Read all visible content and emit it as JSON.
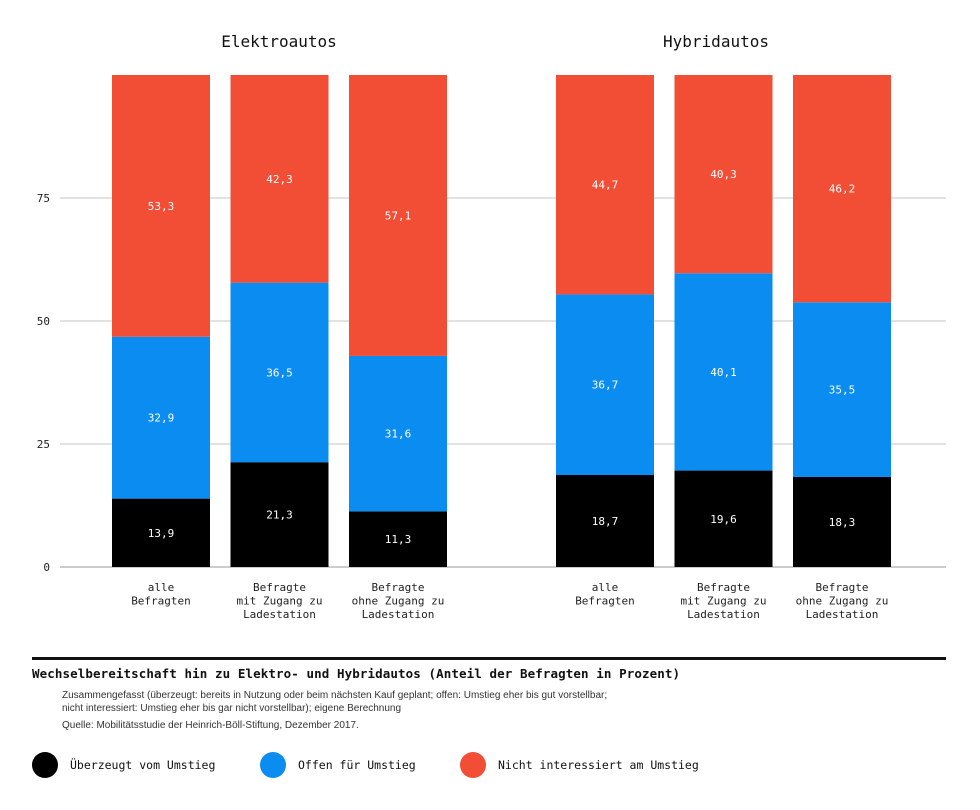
{
  "chart_data": {
    "type": "bar",
    "stacked": true,
    "panels": [
      {
        "title": "Elektroautos",
        "categories": [
          "alle\nBefragten",
          "Befragte\nmit Zugang zu\nLadestation",
          "Befragte\nohne Zugang zu\nLadestation"
        ],
        "series": [
          {
            "name": "Überzeugt vom Umstieg",
            "color": "#000000",
            "values": [
              13.9,
              21.3,
              11.3
            ],
            "labels": [
              "13,9",
              "21,3",
              "11,3"
            ]
          },
          {
            "name": "Offen für Umstieg",
            "color": "#0a8cf0",
            "values": [
              32.9,
              36.5,
              31.6
            ],
            "labels": [
              "32,9",
              "36,5",
              "31,6"
            ]
          },
          {
            "name": "Nicht interessiert am Umstieg",
            "color": "#f24e35",
            "values": [
              53.3,
              42.3,
              57.1
            ],
            "labels": [
              "53,3",
              "42,3",
              "57,1"
            ]
          }
        ]
      },
      {
        "title": "Hybridautos",
        "categories": [
          "alle\nBefragten",
          "Befragte\nmit Zugang zu\nLadestation",
          "Befragte\nohne Zugang zu\nLadestation"
        ],
        "series": [
          {
            "name": "Überzeugt vom Umstieg",
            "color": "#000000",
            "values": [
              18.7,
              19.6,
              18.3
            ],
            "labels": [
              "18,7",
              "19,6",
              "18,3"
            ]
          },
          {
            "name": "Offen für Umstieg",
            "color": "#0a8cf0",
            "values": [
              36.7,
              40.1,
              35.5
            ],
            "labels": [
              "36,7",
              "40,1",
              "35,5"
            ]
          },
          {
            "name": "Nicht interessiert am Umstieg",
            "color": "#f24e35",
            "values": [
              44.7,
              40.3,
              46.2
            ],
            "labels": [
              "44,7",
              "40,3",
              "46,2"
            ]
          }
        ]
      }
    ],
    "yticks": [
      0,
      25,
      50,
      75
    ],
    "ylim": [
      0,
      100
    ],
    "grid": true
  },
  "caption": {
    "title": "Wechselbereitschaft hin zu Elektro- und Hybridautos (Anteil der Befragten in Prozent)",
    "note_line1": "Zusammengefasst (überzeugt: bereits in Nutzung oder beim nächsten Kauf geplant; offen: Umstieg eher bis gut vorstellbar;",
    "note_line2": "nicht interessiert: Umstieg eher bis gar nicht vorstellbar); eigene Berechnung",
    "source": "Quelle: Mobilitätsstudie der Heinrich-Böll-Stiftung, Dezember 2017."
  },
  "legend": {
    "items": [
      {
        "label": "Überzeugt vom Umstieg",
        "color": "#000000"
      },
      {
        "label": "Offen für Umstieg",
        "color": "#0a8cf0"
      },
      {
        "label": "Nicht interessiert am Umstieg",
        "color": "#f24e35"
      }
    ]
  }
}
